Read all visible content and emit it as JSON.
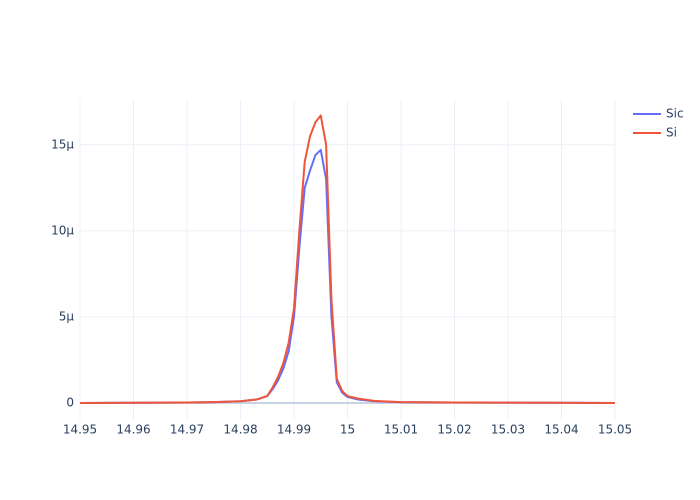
{
  "chart_data": {
    "type": "line",
    "x": [
      14.95,
      14.96,
      14.97,
      14.975,
      14.98,
      14.983,
      14.985,
      14.986,
      14.987,
      14.988,
      14.989,
      14.99,
      14.991,
      14.992,
      14.993,
      14.994,
      14.995,
      14.996,
      14.997,
      14.998,
      14.999,
      15.0,
      15.002,
      15.005,
      15.01,
      15.02,
      15.03,
      15.04,
      15.05
    ],
    "series": [
      {
        "name": "Sic",
        "color": "#636efa",
        "values": [
          0,
          1e-08,
          3e-08,
          5e-08,
          1e-07,
          2e-07,
          4e-07,
          8e-07,
          1.3e-06,
          2e-06,
          3e-06,
          5e-06,
          9e-06,
          1.25e-05,
          1.35e-05,
          1.44e-05,
          1.47e-05,
          1.3e-05,
          5e-06,
          1.2e-06,
          6e-07,
          3.5e-07,
          2e-07,
          1e-07,
          5e-08,
          3e-08,
          2e-08,
          1e-08,
          0
        ]
      },
      {
        "name": "Si",
        "color": "#EF553B",
        "values": [
          0,
          1e-08,
          3e-08,
          5e-08,
          1e-07,
          2e-07,
          4e-07,
          9e-07,
          1.5e-06,
          2.3e-06,
          3.5e-06,
          5.5e-06,
          1e-05,
          1.4e-05,
          1.55e-05,
          1.63e-05,
          1.67e-05,
          1.5e-05,
          6e-06,
          1.4e-06,
          7e-07,
          4e-07,
          2.5e-07,
          1.2e-07,
          5e-08,
          3e-08,
          2e-08,
          1e-08,
          0
        ]
      }
    ],
    "xlim": [
      14.95,
      15.05
    ],
    "xticks": [
      14.95,
      14.96,
      14.97,
      14.98,
      14.99,
      15,
      15.01,
      15.02,
      15.03,
      15.04,
      15.05
    ],
    "ylim": [
      -9.9e-07,
      1.76e-05
    ],
    "yticks": [
      0,
      {
        "value": 5e-06,
        "label": "5μ"
      },
      {
        "value": 1e-05,
        "label": "10μ"
      },
      {
        "value": 1.5e-05,
        "label": "15μ"
      }
    ],
    "grid": true,
    "legend": "top-right"
  }
}
